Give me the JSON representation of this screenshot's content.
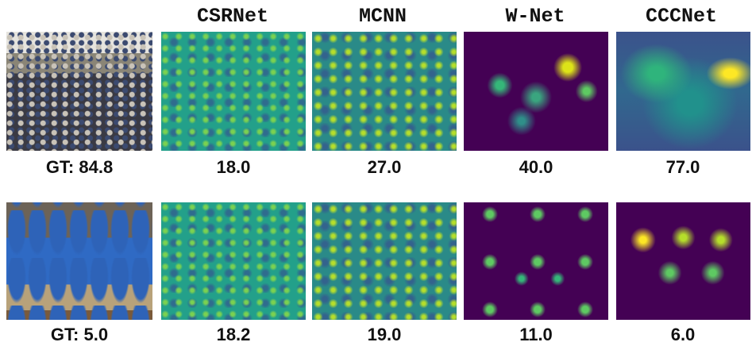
{
  "figure": {
    "columns": [
      "CSRNet",
      "MCNN",
      "W-Net",
      "CCCNet"
    ],
    "rows": [
      {
        "ground_truth": "GT: 84.8",
        "counts": [
          "18.0",
          "27.0",
          "40.0",
          "77.0"
        ]
      },
      {
        "ground_truth": "GT: 5.0",
        "counts": [
          "18.2",
          "19.0",
          "11.0",
          "6.0"
        ]
      }
    ]
  }
}
